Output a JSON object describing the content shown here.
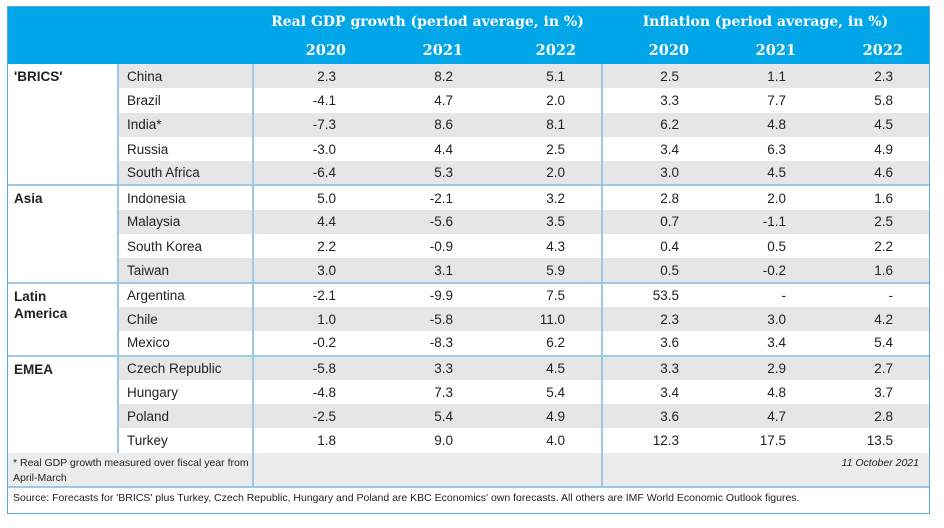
{
  "header": {
    "gdp_title": "Real GDP growth (period average, in %)",
    "inflation_title": "Inflation (period average, in %)",
    "years": [
      "2020",
      "2021",
      "2022",
      "2020",
      "2021",
      "2022"
    ]
  },
  "groups": [
    {
      "name": "'BRICS'",
      "rows": [
        {
          "country": "China",
          "values": [
            "2.3",
            "8.2",
            "5.1",
            "2.5",
            "1.1",
            "2.3"
          ]
        },
        {
          "country": "Brazil",
          "values": [
            "-4.1",
            "4.7",
            "2.0",
            "3.3",
            "7.7",
            "5.8"
          ]
        },
        {
          "country": "India*",
          "values": [
            "-7.3",
            "8.6",
            "8.1",
            "6.2",
            "4.8",
            "4.5"
          ]
        },
        {
          "country": "Russia",
          "values": [
            "-3.0",
            "4.4",
            "2.5",
            "3.4",
            "6.3",
            "4.9"
          ]
        },
        {
          "country": "South Africa",
          "values": [
            "-6.4",
            "5.3",
            "2.0",
            "3.0",
            "4.5",
            "4.6"
          ]
        }
      ]
    },
    {
      "name": "Asia",
      "rows": [
        {
          "country": "Indonesia",
          "values": [
            "5.0",
            "-2.1",
            "3.2",
            "2.8",
            "2.0",
            "1.6"
          ]
        },
        {
          "country": "Malaysia",
          "values": [
            "4.4",
            "-5.6",
            "3.5",
            "0.7",
            "-1.1",
            "2.5"
          ]
        },
        {
          "country": "South Korea",
          "values": [
            "2.2",
            "-0.9",
            "4.3",
            "0.4",
            "0.5",
            "2.2"
          ]
        },
        {
          "country": "Taiwan",
          "values": [
            "3.0",
            "3.1",
            "5.9",
            "0.5",
            "-0.2",
            "1.6"
          ]
        }
      ]
    },
    {
      "name": "Latin America",
      "name_lines": [
        "Latin",
        "America"
      ],
      "rows": [
        {
          "country": "Argentina",
          "values": [
            "-2.1",
            "-9.9",
            "7.5",
            "53.5",
            "-",
            "-"
          ]
        },
        {
          "country": "Chile",
          "values": [
            "1.0",
            "-5.8",
            "11.0",
            "2.3",
            "3.0",
            "4.2"
          ]
        },
        {
          "country": "Mexico",
          "values": [
            "-0.2",
            "-8.3",
            "6.2",
            "3.6",
            "3.4",
            "5.4"
          ]
        }
      ]
    },
    {
      "name": "EMEA",
      "rows": [
        {
          "country": "Czech Republic",
          "values": [
            "-5.8",
            "3.3",
            "4.5",
            "3.3",
            "2.9",
            "2.7"
          ]
        },
        {
          "country": "Hungary",
          "values": [
            "-4.8",
            "7.3",
            "5.4",
            "3.4",
            "4.8",
            "3.7"
          ]
        },
        {
          "country": "Poland",
          "values": [
            "-2.5",
            "5.4",
            "4.9",
            "3.6",
            "4.7",
            "2.8"
          ]
        },
        {
          "country": "Turkey",
          "values": [
            "1.8",
            "9.0",
            "4.0",
            "12.3",
            "17.5",
            "13.5"
          ]
        }
      ]
    }
  ],
  "footnote": "* Real GDP growth measured over fiscal year from April-March",
  "date": "11 October 2021",
  "source": "Source: Forecasts for 'BRICS' plus Turkey, Czech Republic, Hungary and Poland are KBC Economics' own forecasts. All others are IMF World Economic Outlook figures.",
  "colors": {
    "header_bg": "#00a6e8",
    "shade": "#e6e6e6",
    "border": "#9ec9e6"
  }
}
